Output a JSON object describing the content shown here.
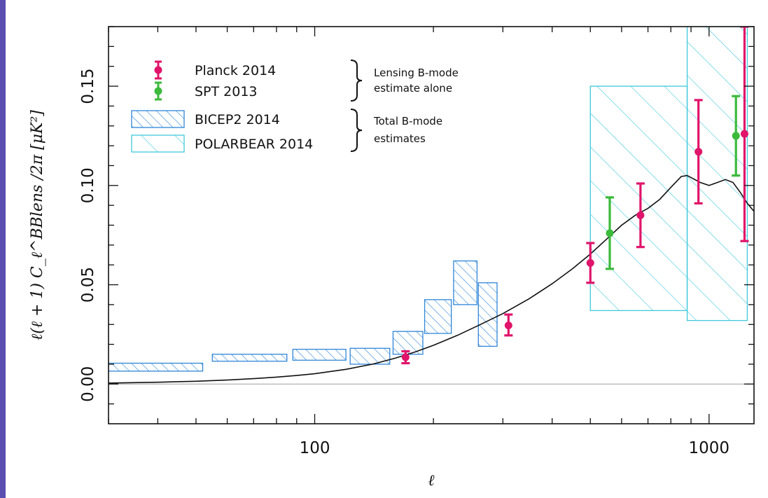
{
  "chart_data": {
    "type": "scatter",
    "xscale": "log",
    "xlim": [
      30,
      1300
    ],
    "ylim": [
      -0.02,
      0.18
    ],
    "xticks": [
      100,
      1000
    ],
    "xtick_labels": [
      "100",
      "1000"
    ],
    "yticks": [
      0.0,
      0.05,
      0.1,
      0.15
    ],
    "ytick_labels": [
      "0.00",
      "0.05",
      "0.10",
      "0.15"
    ],
    "xlabel": "ℓ",
    "ylabel": "ℓ(ℓ + 1)   C_ℓ^BBlens /2π   [μK²]",
    "grid": false,
    "legend_position": "top-left",
    "colors": {
      "planck": "#e0146a",
      "spt": "#3cba3c",
      "bicep2": "#2e86d8",
      "polarbear": "#40c8dc",
      "theory": "#111111",
      "zero_line": "#aaaaaa"
    },
    "legend": [
      {
        "label": "Planck 2014",
        "kind": "point",
        "key": "planck"
      },
      {
        "label": "SPT 2013",
        "kind": "point",
        "key": "spt"
      },
      {
        "label": "BICEP2 2014",
        "kind": "box",
        "key": "bicep2"
      },
      {
        "label": "POLARBEAR 2014",
        "kind": "box",
        "key": "polarbear"
      }
    ],
    "brace_notes": [
      {
        "lines": [
          "Lensing B-mode",
          "estimate alone"
        ]
      },
      {
        "lines": [
          "Total B-mode",
          "estimates"
        ]
      }
    ],
    "series": [
      {
        "name": "Planck 2014",
        "key": "planck",
        "kind": "errorbar",
        "points": [
          {
            "x": 170,
            "y": 0.0135,
            "lo": 0.0105,
            "hi": 0.0165
          },
          {
            "x": 310,
            "y": 0.0295,
            "lo": 0.0245,
            "hi": 0.035
          },
          {
            "x": 500,
            "y": 0.061,
            "lo": 0.051,
            "hi": 0.071
          },
          {
            "x": 670,
            "y": 0.085,
            "lo": 0.069,
            "hi": 0.101
          },
          {
            "x": 940,
            "y": 0.117,
            "lo": 0.091,
            "hi": 0.143
          },
          {
            "x": 1230,
            "y": 0.126,
            "lo": 0.072,
            "hi": 0.18
          }
        ]
      },
      {
        "name": "SPT 2013",
        "key": "spt",
        "kind": "errorbar",
        "points": [
          {
            "x": 560,
            "y": 0.076,
            "lo": 0.058,
            "hi": 0.094
          },
          {
            "x": 1170,
            "y": 0.125,
            "lo": 0.105,
            "hi": 0.145
          }
        ]
      },
      {
        "name": "BICEP2 2014",
        "key": "bicep2",
        "kind": "boxes",
        "boxes": [
          {
            "x0": 30,
            "x1": 52,
            "y0": 0.0065,
            "y1": 0.0105
          },
          {
            "x0": 55,
            "x1": 85,
            "y0": 0.0115,
            "y1": 0.015
          },
          {
            "x0": 88,
            "x1": 120,
            "y0": 0.012,
            "y1": 0.0175
          },
          {
            "x0": 123,
            "x1": 155,
            "y0": 0.01,
            "y1": 0.018
          },
          {
            "x0": 158,
            "x1": 188,
            "y0": 0.015,
            "y1": 0.0265
          },
          {
            "x0": 190,
            "x1": 222,
            "y0": 0.0255,
            "y1": 0.0425
          },
          {
            "x0": 225,
            "x1": 258,
            "y0": 0.04,
            "y1": 0.062
          },
          {
            "x0": 260,
            "x1": 290,
            "y0": 0.019,
            "y1": 0.051
          }
        ]
      },
      {
        "name": "POLARBEAR 2014",
        "key": "polarbear",
        "kind": "boxes",
        "boxes": [
          {
            "x0": 500,
            "x1": 880,
            "y0": 0.037,
            "y1": 0.15
          },
          {
            "x0": 880,
            "x1": 1250,
            "y0": 0.032,
            "y1": 0.18
          }
        ]
      },
      {
        "name": "",
        "key": "theory",
        "kind": "curve",
        "x": [
          30,
          40,
          50,
          60,
          70,
          80,
          90,
          100,
          120,
          140,
          160,
          180,
          200,
          230,
          260,
          300,
          350,
          400,
          450,
          500,
          550,
          600,
          650,
          700,
          750,
          800,
          850,
          880,
          950,
          1000,
          1050,
          1100,
          1150,
          1200,
          1250,
          1300
        ],
        "y": [
          0.0005,
          0.0009,
          0.0014,
          0.002,
          0.0027,
          0.0035,
          0.0043,
          0.0052,
          0.0074,
          0.01,
          0.013,
          0.0162,
          0.0195,
          0.0245,
          0.0295,
          0.0355,
          0.043,
          0.0505,
          0.058,
          0.0655,
          0.073,
          0.08,
          0.085,
          0.0885,
          0.093,
          0.099,
          0.1045,
          0.105,
          0.1015,
          0.1,
          0.1015,
          0.103,
          0.1015,
          0.0965,
          0.091,
          0.087
        ]
      }
    ]
  }
}
